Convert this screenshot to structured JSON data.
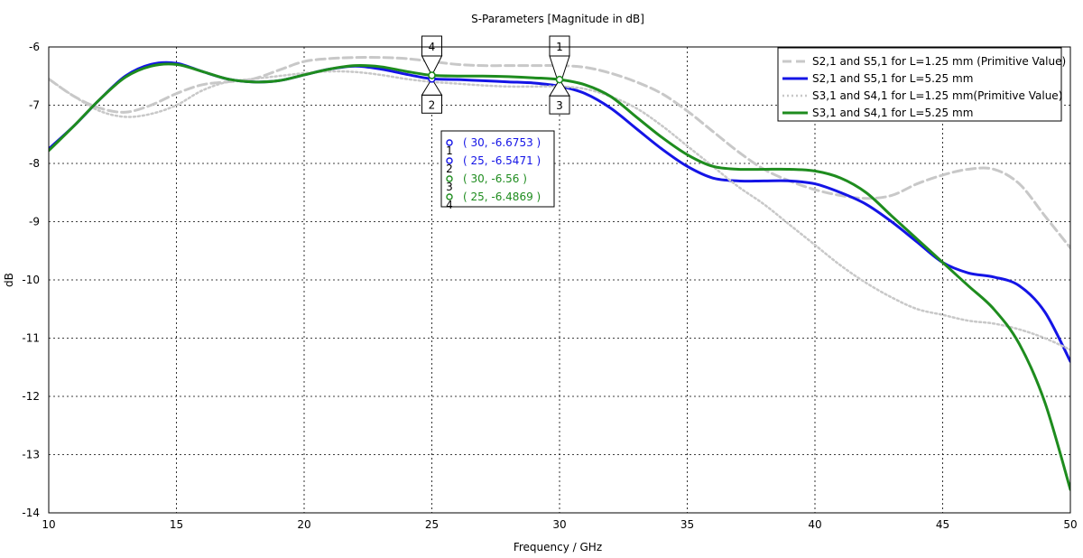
{
  "chart_data": {
    "type": "line",
    "title": "S-Parameters [Magnitude in dB]",
    "xlabel": "Frequency / GHz",
    "ylabel": "dB",
    "xlim": [
      10,
      50
    ],
    "ylim": [
      -14,
      -6
    ],
    "xticks": [
      10,
      15,
      20,
      25,
      30,
      35,
      40,
      45,
      50
    ],
    "yticks": [
      -6,
      -7,
      -8,
      -9,
      -10,
      -11,
      -12,
      -13,
      -14
    ],
    "grid": true,
    "legend_position": "top-right",
    "series": [
      {
        "name": "S2,1 and S5,1 for L=1.25 mm (Primitive Value)",
        "color": "#c8c8c8",
        "style": "dashed",
        "x": [
          10,
          11,
          12,
          13,
          14,
          15,
          16,
          17,
          18,
          19,
          20,
          21,
          22,
          23,
          24,
          25,
          26,
          27,
          28,
          29,
          30,
          31,
          32,
          33,
          34,
          35,
          36,
          37,
          38,
          39,
          40,
          41,
          42,
          43,
          44,
          45,
          46,
          47,
          48,
          49,
          50
        ],
        "values": [
          -6.55,
          -6.85,
          -7.05,
          -7.12,
          -7.0,
          -6.8,
          -6.65,
          -6.6,
          -6.55,
          -6.4,
          -6.25,
          -6.2,
          -6.18,
          -6.18,
          -6.2,
          -6.25,
          -6.3,
          -6.32,
          -6.32,
          -6.32,
          -6.32,
          -6.35,
          -6.45,
          -6.6,
          -6.8,
          -7.1,
          -7.45,
          -7.8,
          -8.1,
          -8.3,
          -8.45,
          -8.55,
          -8.6,
          -8.55,
          -8.35,
          -8.2,
          -8.1,
          -8.1,
          -8.35,
          -8.9,
          -9.45
        ]
      },
      {
        "name": "S2,1 and S5,1 for L=5.25 mm",
        "color": "#1414e6",
        "style": "solid",
        "x": [
          10,
          11,
          12,
          13,
          14,
          15,
          16,
          17,
          18,
          19,
          20,
          21,
          22,
          23,
          24,
          25,
          26,
          27,
          28,
          29,
          30,
          31,
          32,
          33,
          34,
          35,
          36,
          37,
          38,
          39,
          40,
          41,
          42,
          43,
          44,
          45,
          46,
          47,
          48,
          49,
          50
        ],
        "values": [
          -7.75,
          -7.35,
          -6.9,
          -6.5,
          -6.3,
          -6.28,
          -6.42,
          -6.55,
          -6.6,
          -6.58,
          -6.48,
          -6.38,
          -6.33,
          -6.38,
          -6.47,
          -6.547,
          -6.56,
          -6.58,
          -6.6,
          -6.62,
          -6.675,
          -6.8,
          -7.05,
          -7.4,
          -7.75,
          -8.05,
          -8.25,
          -8.3,
          -8.3,
          -8.3,
          -8.35,
          -8.5,
          -8.7,
          -9.0,
          -9.35,
          -9.7,
          -9.88,
          -9.95,
          -10.1,
          -10.55,
          -11.4
        ]
      },
      {
        "name": "S3,1 and S4,1 for L=1.25 mm(Primitive Value)",
        "color": "#c8c8c8",
        "style": "dotted",
        "x": [
          10,
          11,
          12,
          13,
          14,
          15,
          16,
          17,
          18,
          19,
          20,
          21,
          22,
          23,
          24,
          25,
          26,
          27,
          28,
          29,
          30,
          31,
          32,
          33,
          34,
          35,
          36,
          37,
          38,
          39,
          40,
          41,
          42,
          43,
          44,
          45,
          46,
          47,
          48,
          49,
          50
        ],
        "values": [
          -6.55,
          -6.85,
          -7.1,
          -7.2,
          -7.15,
          -7.0,
          -6.75,
          -6.6,
          -6.55,
          -6.5,
          -6.45,
          -6.42,
          -6.43,
          -6.48,
          -6.55,
          -6.6,
          -6.63,
          -6.66,
          -6.68,
          -6.68,
          -6.68,
          -6.72,
          -6.85,
          -7.05,
          -7.35,
          -7.7,
          -8.05,
          -8.4,
          -8.7,
          -9.05,
          -9.4,
          -9.75,
          -10.05,
          -10.3,
          -10.5,
          -10.6,
          -10.7,
          -10.75,
          -10.85,
          -11.0,
          -11.2
        ]
      },
      {
        "name": "S3,1 and S4,1 for L=5.25 mm",
        "color": "#1e8c1e",
        "style": "solid",
        "x": [
          10,
          11,
          12,
          13,
          14,
          15,
          16,
          17,
          18,
          19,
          20,
          21,
          22,
          23,
          24,
          25,
          26,
          27,
          28,
          29,
          30,
          31,
          32,
          33,
          34,
          35,
          36,
          37,
          38,
          39,
          40,
          41,
          42,
          43,
          44,
          45,
          46,
          47,
          48,
          49,
          50
        ],
        "values": [
          -7.78,
          -7.35,
          -6.9,
          -6.52,
          -6.33,
          -6.3,
          -6.42,
          -6.55,
          -6.6,
          -6.58,
          -6.48,
          -6.38,
          -6.32,
          -6.34,
          -6.42,
          -6.487,
          -6.5,
          -6.5,
          -6.51,
          -6.53,
          -6.56,
          -6.65,
          -6.85,
          -7.2,
          -7.55,
          -7.85,
          -8.05,
          -8.1,
          -8.1,
          -8.1,
          -8.13,
          -8.25,
          -8.5,
          -8.9,
          -9.3,
          -9.7,
          -10.1,
          -10.5,
          -11.1,
          -12.1,
          -13.6
        ]
      }
    ],
    "markers": [
      {
        "id": "1",
        "x": 30,
        "y": -6.6753,
        "series": 1,
        "label_side": "top"
      },
      {
        "id": "2",
        "x": 25,
        "y": -6.5471,
        "series": 1,
        "label_side": "bottom"
      },
      {
        "id": "3",
        "x": 30,
        "y": -6.56,
        "series": 3,
        "label_side": "bottom"
      },
      {
        "id": "4",
        "x": 25,
        "y": -6.4869,
        "series": 3,
        "label_side": "top"
      }
    ],
    "readouts": [
      {
        "id": "1",
        "text": "( 30, -6.6753 )",
        "color": "#1414e6"
      },
      {
        "id": "2",
        "text": "( 25, -6.5471 )",
        "color": "#1414e6"
      },
      {
        "id": "3",
        "text": "( 30, -6.56 )",
        "color": "#1e8c1e"
      },
      {
        "id": "4",
        "text": "( 25, -6.4869 )",
        "color": "#1e8c1e"
      }
    ]
  }
}
